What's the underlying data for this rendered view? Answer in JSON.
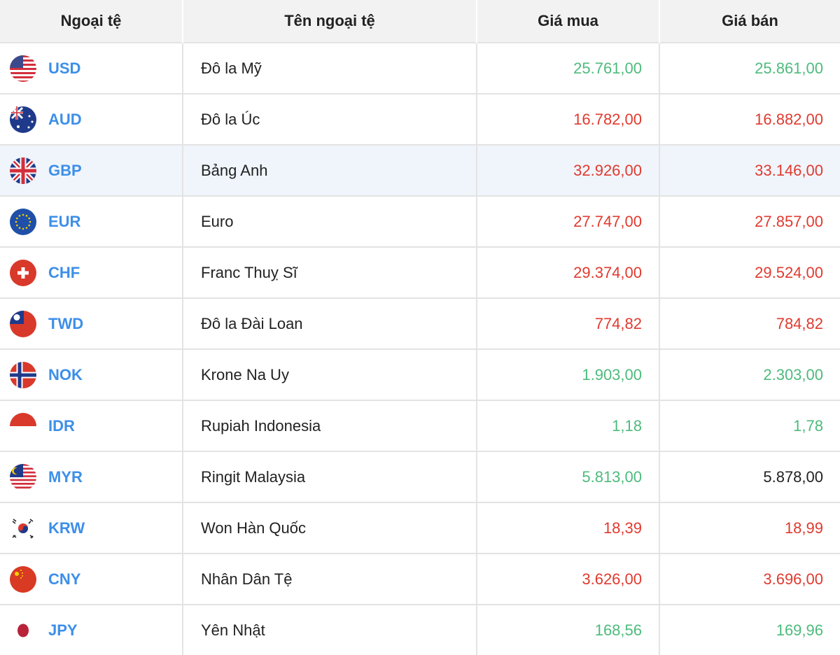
{
  "headers": {
    "code": "Ngoại tệ",
    "name": "Tên ngoại tệ",
    "buy": "Giá mua",
    "sell": "Giá bán"
  },
  "colors": {
    "up": "#4dbb7c",
    "down": "#e03a2f",
    "unchanged": "#222222",
    "code": "#3d8fe8"
  },
  "rows": [
    {
      "code": "USD",
      "flag": "us-flag-icon",
      "name": "Đô la Mỹ",
      "buy": "25.761,00",
      "buy_trend": "green",
      "sell": "25.861,00",
      "sell_trend": "green"
    },
    {
      "code": "AUD",
      "flag": "au-flag-icon",
      "name": "Đô la Úc",
      "buy": "16.782,00",
      "buy_trend": "red",
      "sell": "16.882,00",
      "sell_trend": "red"
    },
    {
      "code": "GBP",
      "flag": "gb-flag-icon",
      "name": "Bảng Anh",
      "buy": "32.926,00",
      "buy_trend": "red",
      "sell": "33.146,00",
      "sell_trend": "red",
      "highlighted": true
    },
    {
      "code": "EUR",
      "flag": "eu-flag-icon",
      "name": "Euro",
      "buy": "27.747,00",
      "buy_trend": "red",
      "sell": "27.857,00",
      "sell_trend": "red"
    },
    {
      "code": "CHF",
      "flag": "ch-flag-icon",
      "name": "Franc Thuỵ Sĩ",
      "buy": "29.374,00",
      "buy_trend": "red",
      "sell": "29.524,00",
      "sell_trend": "red"
    },
    {
      "code": "TWD",
      "flag": "tw-flag-icon",
      "name": "Đô la Đài Loan",
      "buy": "774,82",
      "buy_trend": "red",
      "sell": "784,82",
      "sell_trend": "red"
    },
    {
      "code": "NOK",
      "flag": "no-flag-icon",
      "name": "Krone Na Uy",
      "buy": "1.903,00",
      "buy_trend": "green",
      "sell": "2.303,00",
      "sell_trend": "green"
    },
    {
      "code": "IDR",
      "flag": "id-flag-icon",
      "name": "Rupiah Indonesia",
      "buy": "1,18",
      "buy_trend": "green",
      "sell": "1,78",
      "sell_trend": "green"
    },
    {
      "code": "MYR",
      "flag": "my-flag-icon",
      "name": "Ringit Malaysia",
      "buy": "5.813,00",
      "buy_trend": "green",
      "sell": "5.878,00",
      "sell_trend": "black"
    },
    {
      "code": "KRW",
      "flag": "kr-flag-icon",
      "name": "Won Hàn Quốc",
      "buy": "18,39",
      "buy_trend": "red",
      "sell": "18,99",
      "sell_trend": "red"
    },
    {
      "code": "CNY",
      "flag": "cn-flag-icon",
      "name": "Nhân Dân Tệ",
      "buy": "3.626,00",
      "buy_trend": "red",
      "sell": "3.696,00",
      "sell_trend": "red"
    },
    {
      "code": "JPY",
      "flag": "jp-flag-icon",
      "name": "Yên Nhật",
      "buy": "168,56",
      "buy_trend": "green",
      "sell": "169,96",
      "sell_trend": "green"
    }
  ]
}
